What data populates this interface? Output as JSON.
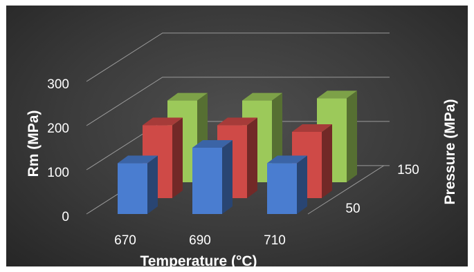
{
  "chart_data": {
    "type": "bar",
    "subtype": "3d-column",
    "title": "",
    "xlabel": "Temperature (°C)",
    "ylabel": "Rm (MPa)",
    "zlabel": "Pressure (MPa)",
    "categories": [
      "670",
      "690",
      "710"
    ],
    "z_tick_labels": [
      "50",
      "150"
    ],
    "y_ticks": [
      "0",
      "100",
      "200",
      "300"
    ],
    "ylim": [
      0,
      300
    ],
    "grid": true,
    "legend": "none",
    "series": [
      {
        "values": [
          115,
          150,
          115
        ],
        "color": "#4a7dd0"
      },
      {
        "values": [
          165,
          165,
          150
        ],
        "color": "#cf4a47"
      },
      {
        "values": [
          185,
          185,
          190
        ],
        "color": "#9cc95a"
      }
    ]
  }
}
